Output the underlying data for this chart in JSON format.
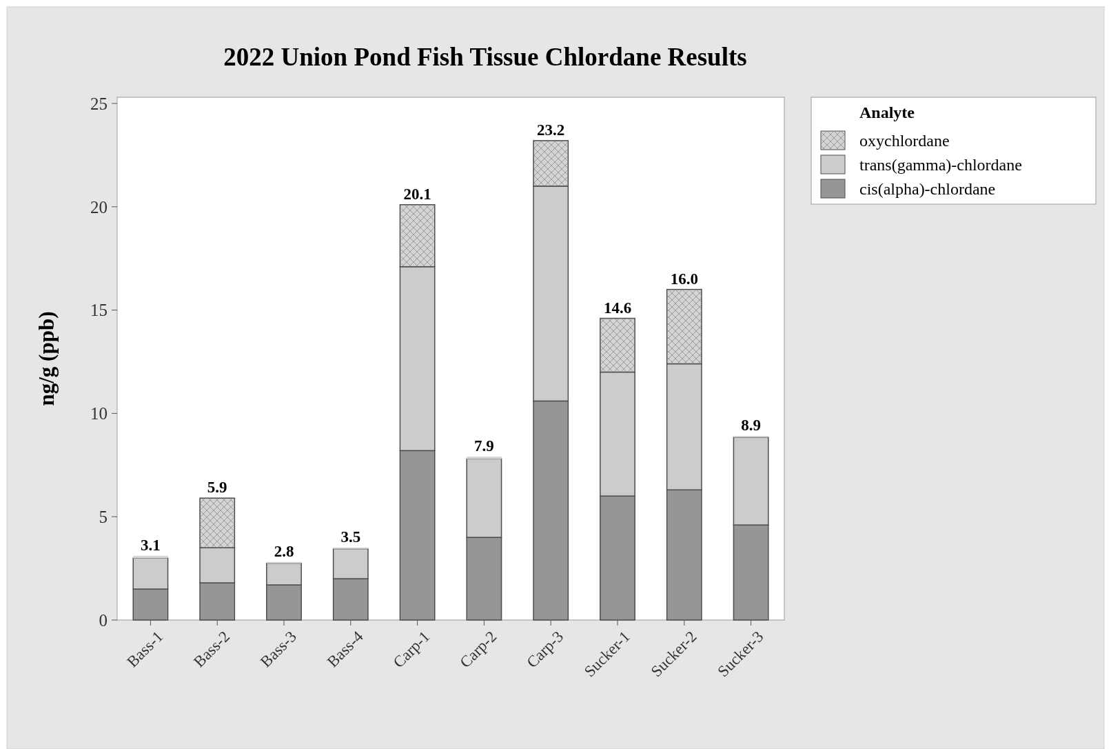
{
  "chart_data": {
    "type": "bar",
    "stacked": true,
    "title": "2022 Union Pond Fish Tissue Chlordane Results",
    "ylabel": "ng/g (ppb)",
    "legend_title": "Analyte",
    "legend": "top right",
    "categories": [
      "Bass-1",
      "Bass-2",
      "Bass-3",
      "Bass-4",
      "Carp-1",
      "Carp-2",
      "Carp-3",
      "Sucker-1",
      "Sucker-2",
      "Sucker-3"
    ],
    "series": [
      {
        "name": "cis(alpha)-chlordane",
        "color": "#969696",
        "values": [
          1.5,
          1.8,
          1.7,
          2.0,
          8.2,
          4.0,
          10.6,
          6.0,
          6.3,
          4.6
        ]
      },
      {
        "name": "trans(gamma)-chlordane",
        "color": "#cccccc",
        "values": [
          1.5,
          1.7,
          1.05,
          1.45,
          8.9,
          3.8,
          10.4,
          6.0,
          6.1,
          4.25
        ]
      },
      {
        "name": "oxychlordane",
        "color": "#d4d4d4",
        "values": [
          0.1,
          2.4,
          0.05,
          0.05,
          3.0,
          0.1,
          2.2,
          2.6,
          3.6,
          0.05
        ]
      }
    ],
    "totals": [
      "3.1",
      "5.9",
      "2.8",
      "3.5",
      "20.1",
      "7.9",
      "23.2",
      "14.6",
      "16.0",
      "8.9"
    ],
    "ylim": [
      0,
      25.3
    ],
    "yticks": [
      0,
      5,
      10,
      15,
      20,
      25
    ]
  }
}
